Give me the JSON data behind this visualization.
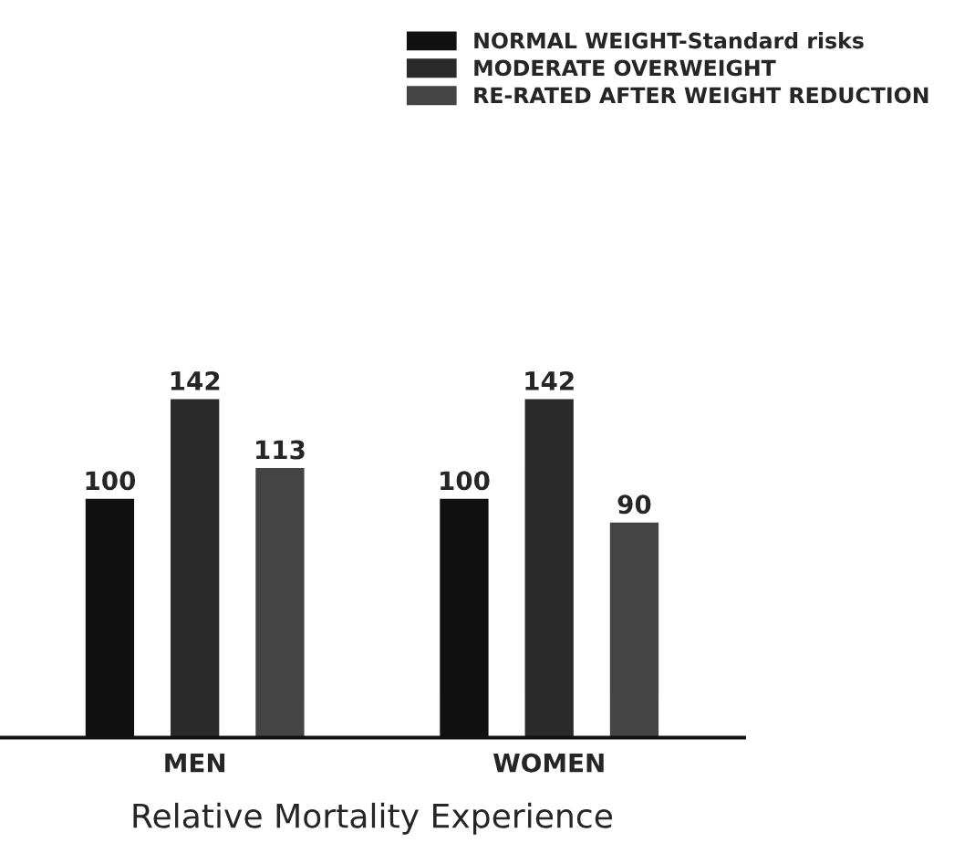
{
  "chart_data": {
    "type": "bar",
    "xlabel": "Relative Mortality Experience",
    "categories": [
      "MEN",
      "WOMEN"
    ],
    "series": [
      {
        "name": "NORMAL WEIGHT-Standard risks",
        "color": "#111111",
        "values": [
          100,
          100
        ]
      },
      {
        "name": "MODERATE OVERWEIGHT",
        "color": "#2a2a2a",
        "values": [
          142,
          142
        ]
      },
      {
        "name": "RE-RATED AFTER WEIGHT REDUCTION",
        "color": "#444444",
        "values": [
          113,
          90
        ]
      }
    ],
    "data_labels": true,
    "legend": "top right",
    "grid": false
  }
}
